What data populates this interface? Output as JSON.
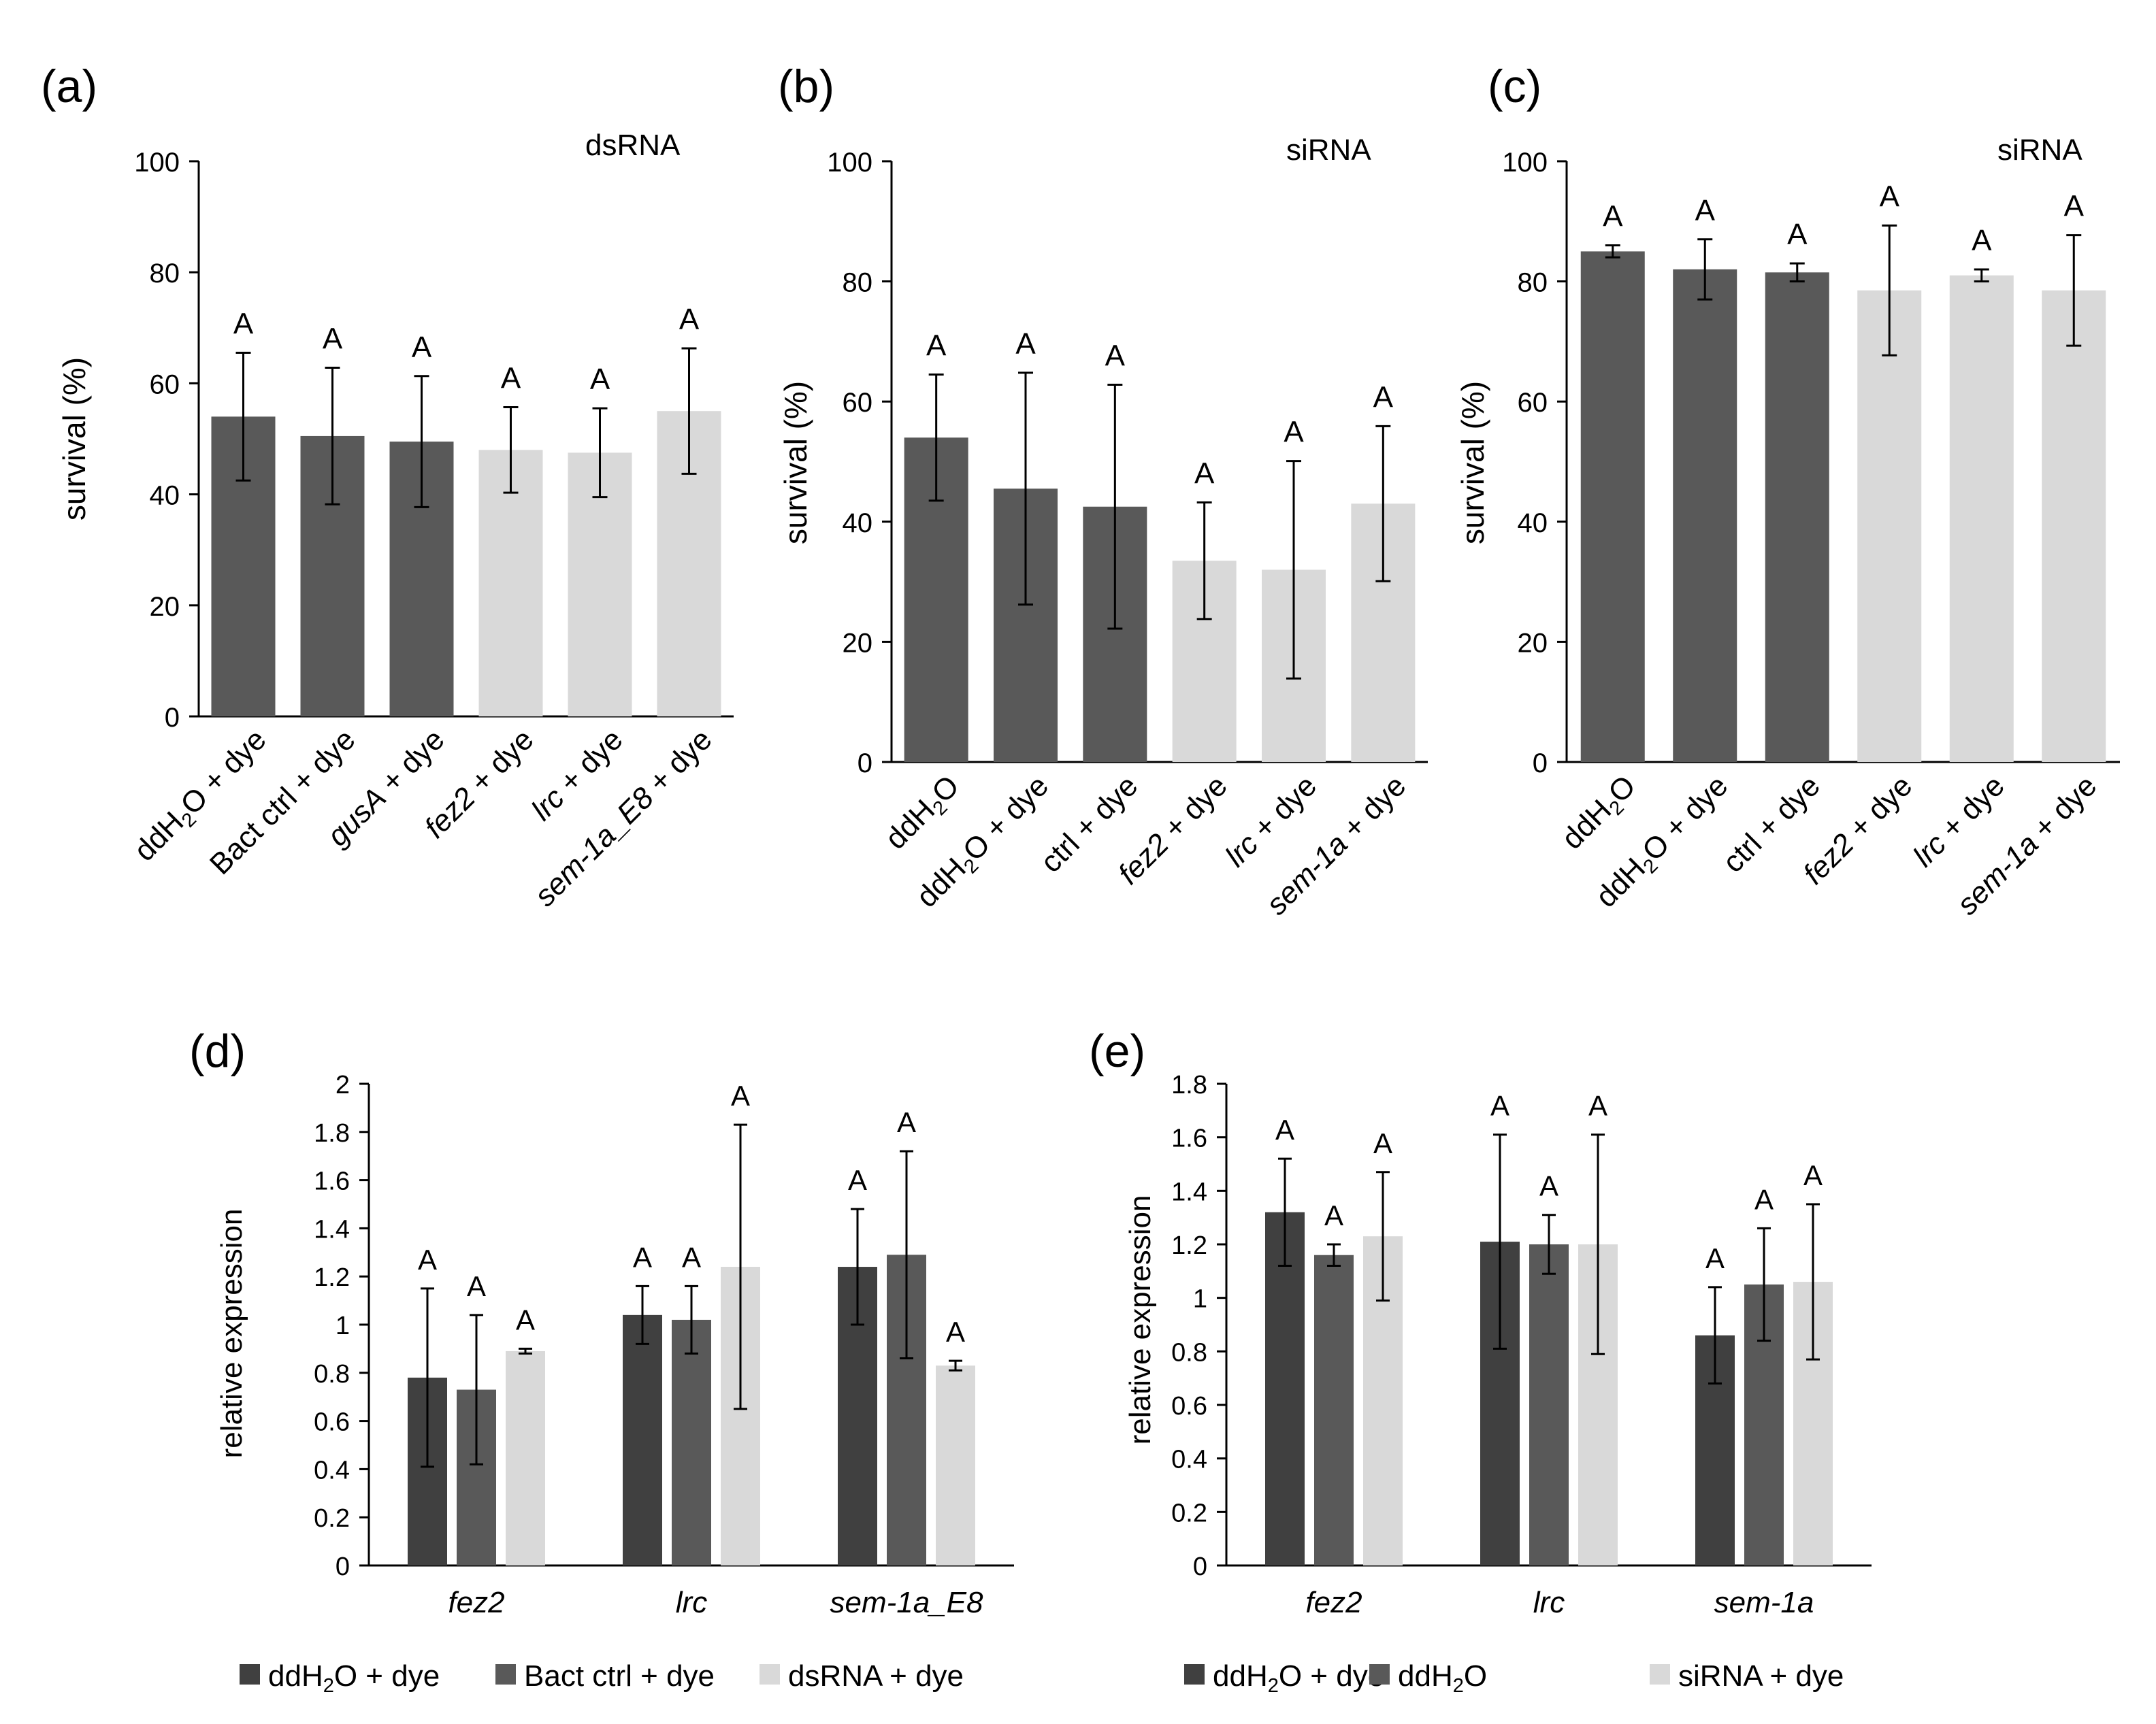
{
  "chart_data": [
    {
      "panel": "(a)",
      "type": "bar",
      "annotation": "dsRNA",
      "ylabel": "survival (%)",
      "ylim": [
        0,
        100
      ],
      "yticks": [
        "0",
        "20",
        "40",
        "60",
        "80",
        "100"
      ],
      "categories": [
        {
          "parts": [
            {
              "t": "ddH"
            },
            {
              "t": "2",
              "sub": true
            },
            {
              "t": "O + dye"
            }
          ]
        },
        {
          "parts": [
            {
              "t": "Bact ctrl + dye"
            }
          ]
        },
        {
          "parts": [
            {
              "t": "gusA",
              "it": true
            },
            {
              "t": " + dye"
            }
          ]
        },
        {
          "parts": [
            {
              "t": "fez2",
              "it": true
            },
            {
              "t": " + dye"
            }
          ]
        },
        {
          "parts": [
            {
              "t": "lrc",
              "it": true
            },
            {
              "t": " + dye"
            }
          ]
        },
        {
          "parts": [
            {
              "t": "sem-1a_E8",
              "it": true
            },
            {
              "t": " + dye"
            }
          ]
        }
      ],
      "values": [
        54,
        50.5,
        49.5,
        48,
        47.5,
        55
      ],
      "errors": [
        11.5,
        12.3,
        11.8,
        7.7,
        8,
        11.3
      ],
      "groups": [
        "dark",
        "dark",
        "dark",
        "light",
        "light",
        "light"
      ],
      "letters": [
        "A",
        "A",
        "A",
        "A",
        "A",
        "A"
      ]
    },
    {
      "panel": "(b)",
      "type": "bar",
      "annotation": "siRNA",
      "ylabel": "survival (%)",
      "ylim": [
        0,
        100
      ],
      "yticks": [
        "0",
        "20",
        "40",
        "60",
        "80",
        "100"
      ],
      "categories": [
        {
          "parts": [
            {
              "t": "ddH"
            },
            {
              "t": "2",
              "sub": true
            },
            {
              "t": "O"
            }
          ]
        },
        {
          "parts": [
            {
              "t": "ddH"
            },
            {
              "t": "2",
              "sub": true
            },
            {
              "t": "O + dye"
            }
          ]
        },
        {
          "parts": [
            {
              "t": "ctrl + dye"
            }
          ]
        },
        {
          "parts": [
            {
              "t": "fez2",
              "it": true
            },
            {
              "t": " + dye"
            }
          ]
        },
        {
          "parts": [
            {
              "t": "lrc",
              "it": true
            },
            {
              "t": " + dye"
            }
          ]
        },
        {
          "parts": [
            {
              "t": "sem-1a",
              "it": true
            },
            {
              "t": " + dye"
            }
          ]
        }
      ],
      "values": [
        54,
        45.5,
        42.5,
        33.5,
        32,
        43
      ],
      "errors": [
        10.5,
        19.3,
        20.3,
        9.7,
        18.1,
        12.9
      ],
      "groups": [
        "dark",
        "dark",
        "dark",
        "light",
        "light",
        "light"
      ],
      "letters": [
        "A",
        "A",
        "A",
        "A",
        "A",
        "A"
      ]
    },
    {
      "panel": "(c)",
      "type": "bar",
      "annotation": "siRNA",
      "ylabel": "survival (%)",
      "ylim": [
        0,
        100
      ],
      "yticks": [
        "0",
        "20",
        "40",
        "60",
        "80",
        "100"
      ],
      "categories": [
        {
          "parts": [
            {
              "t": "ddH"
            },
            {
              "t": "2",
              "sub": true
            },
            {
              "t": "O"
            }
          ]
        },
        {
          "parts": [
            {
              "t": "ddH"
            },
            {
              "t": "2",
              "sub": true
            },
            {
              "t": "O + dye"
            }
          ]
        },
        {
          "parts": [
            {
              "t": "ctrl + dye"
            }
          ]
        },
        {
          "parts": [
            {
              "t": "fez2",
              "it": true
            },
            {
              "t": " + dye"
            }
          ]
        },
        {
          "parts": [
            {
              "t": "lrc",
              "it": true
            },
            {
              "t": " + dye"
            }
          ]
        },
        {
          "parts": [
            {
              "t": "sem-1a",
              "it": true
            },
            {
              "t": " + dye"
            }
          ]
        }
      ],
      "values": [
        85,
        82,
        81.5,
        78.5,
        81,
        78.5
      ],
      "errors": [
        1,
        5,
        1.5,
        10.8,
        1,
        9.2
      ],
      "groups": [
        "dark",
        "dark",
        "dark",
        "light",
        "light",
        "light"
      ],
      "letters": [
        "A",
        "A",
        "A",
        "A",
        "A",
        "A"
      ]
    },
    {
      "panel": "(d)",
      "type": "bar",
      "ylabel": "relative expression",
      "ylim": [
        0,
        2
      ],
      "yticks": [
        "0",
        "0.2",
        "0.4",
        "0.6",
        "0.8",
        "1",
        "1.2",
        "1.4",
        "1.6",
        "1.8",
        "2"
      ],
      "categories": [
        "fez2",
        "lrc",
        "sem-1a_E8"
      ],
      "series": [
        {
          "name": [
            {
              "t": "ddH"
            },
            {
              "t": "2",
              "sub": true
            },
            {
              "t": "O  + dye"
            }
          ],
          "color": "#404040",
          "values": [
            0.78,
            1.04,
            1.24
          ],
          "errors": [
            0.37,
            0.12,
            0.24
          ],
          "letters": [
            "A",
            "A",
            "A"
          ]
        },
        {
          "name": [
            {
              "t": "Bact ctrl + dye"
            }
          ],
          "color": "#595959",
          "values": [
            0.73,
            1.02,
            1.29
          ],
          "errors": [
            0.31,
            0.14,
            0.43
          ],
          "letters": [
            "A",
            "A",
            "A"
          ]
        },
        {
          "name": [
            {
              "t": "dsRNA + dye"
            }
          ],
          "color": "#d9d9d9",
          "values": [
            0.89,
            1.24,
            0.83
          ],
          "errors": [
            0.01,
            0.59,
            0.02
          ],
          "letters": [
            "A",
            "A",
            "A"
          ]
        }
      ]
    },
    {
      "panel": "(e)",
      "type": "bar",
      "ylabel": "relative expression",
      "ylim": [
        0,
        1.8
      ],
      "yticks": [
        "0",
        "0.2",
        "0.4",
        "0.6",
        "0.8",
        "1",
        "1.2",
        "1.4",
        "1.6",
        "1.8"
      ],
      "categories": [
        "fez2",
        "lrc",
        "sem-1a"
      ],
      "series": [
        {
          "name": [
            {
              "t": "ddH"
            },
            {
              "t": "2",
              "sub": true
            },
            {
              "t": "O + dye"
            }
          ],
          "color": "#404040",
          "values": [
            1.32,
            1.21,
            0.86
          ],
          "errors": [
            0.2,
            0.4,
            0.18
          ],
          "letters": [
            "A",
            "A",
            "A"
          ]
        },
        {
          "name": [
            {
              "t": "ddH"
            },
            {
              "t": "2",
              "sub": true
            },
            {
              "t": "O"
            }
          ],
          "color": "#595959",
          "values": [
            1.16,
            1.2,
            1.05
          ],
          "errors": [
            0.04,
            0.11,
            0.21
          ],
          "letters": [
            "A",
            "A",
            "A"
          ]
        },
        {
          "name": [
            {
              "t": "siRNA + dye"
            }
          ],
          "color": "#d9d9d9",
          "values": [
            1.23,
            1.2,
            1.06
          ],
          "errors": [
            0.24,
            0.41,
            0.29
          ],
          "letters": [
            "A",
            "A",
            "A"
          ]
        }
      ]
    }
  ],
  "colors": {
    "dark": "#595959",
    "light": "#d9d9d9"
  }
}
